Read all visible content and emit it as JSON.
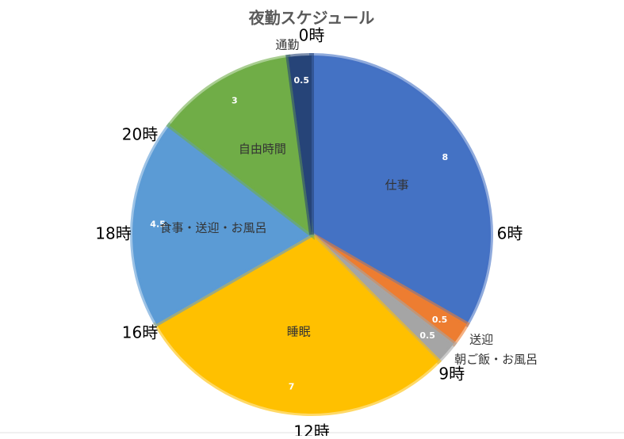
{
  "chart_data": {
    "type": "pie",
    "title": "夜勤スケジュール",
    "categories": [
      "仕事",
      "送迎",
      "朝ご飯・お風呂",
      "睡眠",
      "食事・送迎・お風呂",
      "自由時間",
      "通勤"
    ],
    "values": [
      8,
      0.5,
      0.5,
      7,
      4.5,
      3,
      0.5
    ],
    "colors": [
      "#4472c4",
      "#ed7d31",
      "#a5a5a5",
      "#ffc000",
      "#5b9bd5",
      "#70ad47",
      "#264478"
    ],
    "hour_marks": [
      {
        "value": 0,
        "label": "0時"
      },
      {
        "value": 6,
        "label": "6時"
      },
      {
        "value": 9,
        "label": "9時"
      },
      {
        "value": 12,
        "label": "12時"
      },
      {
        "value": 16,
        "label": "16時"
      },
      {
        "value": 18,
        "label": "18時"
      },
      {
        "value": 20,
        "label": "20時"
      }
    ]
  }
}
